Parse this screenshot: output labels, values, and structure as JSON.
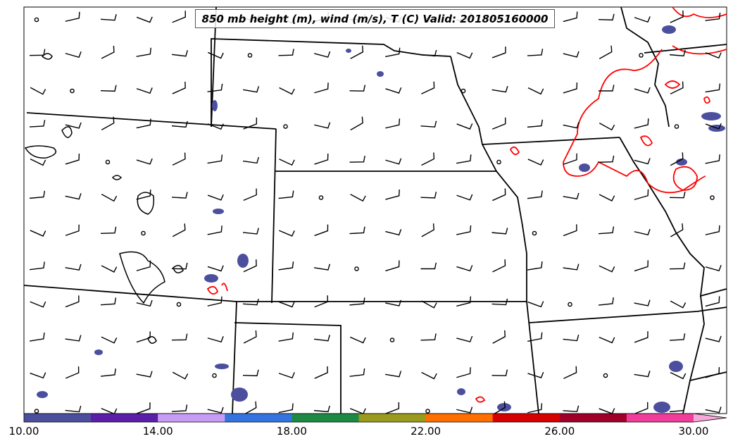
{
  "title": "850 mb height (m), wind (m/s), T (C) Valid: 201805160000",
  "colorbar": {
    "colors": [
      "#4c4f9e",
      "#5a1ea8",
      "#c79cf5",
      "#3574e0",
      "#1d8a43",
      "#9a9a1c",
      "#ff6f00",
      "#d70000",
      "#a00028",
      "#f03c9a",
      "#f7a8d8"
    ],
    "tick_labels": [
      "10.00",
      "14.00",
      "18.00",
      "22.00",
      "26.00",
      "30.00"
    ]
  },
  "colors": {
    "borders": "#000000",
    "temperature_contour": "#ff0000",
    "fill_low": "#4c4f9e"
  }
}
